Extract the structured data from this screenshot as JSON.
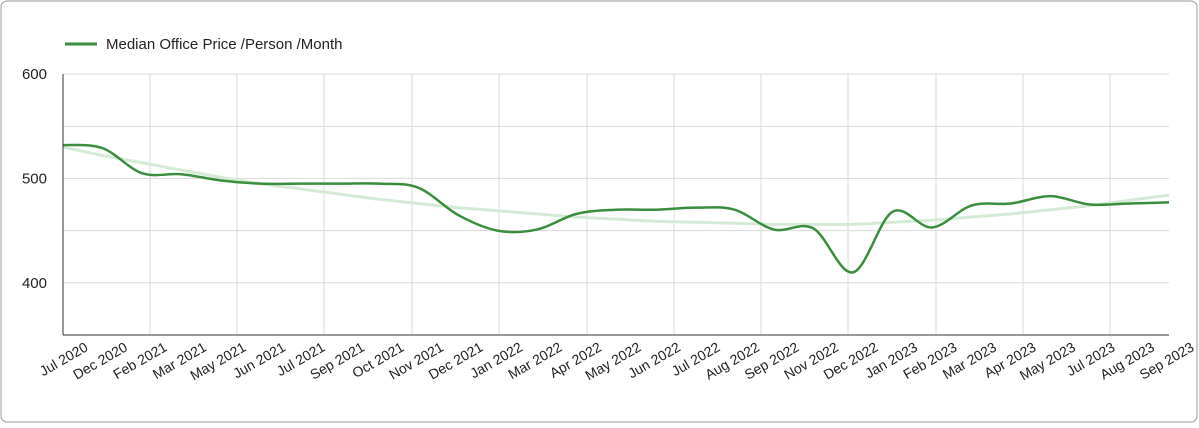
{
  "chart_data": {
    "type": "line",
    "categories": [
      "Jul 2020",
      "Dec 2020",
      "Feb 2021",
      "Mar 2021",
      "May 2021",
      "Jun 2021",
      "Jul 2021",
      "Sep 2021",
      "Oct 2021",
      "Nov 2021",
      "Dec 2021",
      "Jan 2022",
      "Mar 2022",
      "Apr 2022",
      "May 2022",
      "Jun 2022",
      "Jul 2022",
      "Aug 2022",
      "Sep 2022",
      "Nov 2022",
      "Dec 2022",
      "Jan 2023",
      "Feb 2023",
      "Mar 2023",
      "Apr 2023",
      "May 2023",
      "Jul 2023",
      "Aug 2023",
      "Sep 2023"
    ],
    "series": [
      {
        "name": "Median Office Price /Person /Month",
        "color": "#388e3c",
        "values": [
          532,
          529,
          505,
          504,
          498,
          495,
          495,
          495,
          495,
          491,
          465,
          450,
          451,
          466,
          470,
          470,
          472,
          470,
          451,
          452,
          410,
          468,
          453,
          474,
          476,
          483,
          475,
          476,
          477
        ]
      }
    ],
    "trend": {
      "color": "#d4ead4",
      "values": [
        530,
        522,
        515,
        508,
        501,
        495,
        490,
        485,
        480,
        476,
        472,
        469,
        466,
        463,
        461,
        459,
        458,
        457,
        456,
        456,
        456,
        458,
        460,
        463,
        466,
        470,
        474,
        479,
        484
      ]
    },
    "ylim": [
      350,
      600
    ],
    "yticks": [
      400,
      500,
      600
    ],
    "minor_yticks": [
      450,
      550
    ],
    "grid": true,
    "legend": "top-left"
  }
}
